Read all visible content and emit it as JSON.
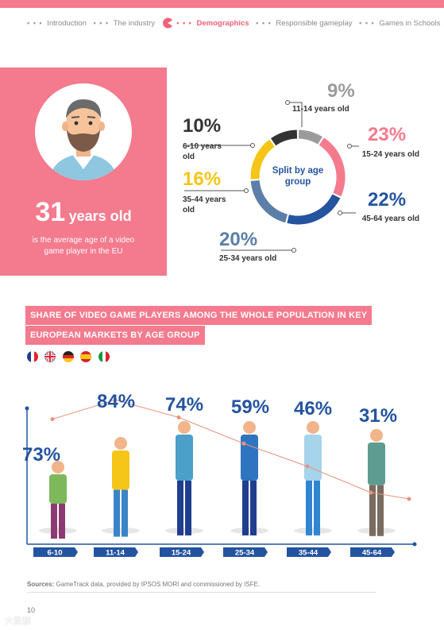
{
  "nav": {
    "items": [
      {
        "label": "Introduction",
        "active": false
      },
      {
        "label": "The industry",
        "active": false
      },
      {
        "label": "Demographics",
        "active": true
      },
      {
        "label": "Responsible gameplay",
        "active": false
      },
      {
        "label": "Games in Schools",
        "active": false
      }
    ]
  },
  "hero": {
    "age_number": "31",
    "age_unit": "years old",
    "description": "is the average age of a video game player in the EU"
  },
  "split": {
    "center_label": "Split by age group",
    "segments": [
      {
        "pct": "9%",
        "label": "11-14 years old",
        "value": 9,
        "color": "#9b9b9b"
      },
      {
        "pct": "23%",
        "label": "15-24 years old",
        "value": 23,
        "color": "#f47a8e"
      },
      {
        "pct": "22%",
        "label": "45-64 years old",
        "value": 22,
        "color": "#2454a0"
      },
      {
        "pct": "20%",
        "label": "25-34 years old",
        "value": 20,
        "color": "#5b7fa8"
      },
      {
        "pct": "16%",
        "label": "35-44 years old",
        "value": 16,
        "color": "#f5c518"
      },
      {
        "pct": "10%",
        "label": "6-10 years old",
        "value": 10,
        "color": "#333333"
      }
    ]
  },
  "share": {
    "title_line1": "SHARE OF VIDEO GAME PLAYERS AMONG THE WHOLE POPULATION IN KEY",
    "title_line2": "EUROPEAN MARKETS BY AGE GROUP",
    "flags": [
      "france-flag",
      "uk-flag",
      "germany-flag",
      "spain-flag",
      "italy-flag"
    ]
  },
  "chart_data": {
    "type": "line",
    "categories": [
      "6-10",
      "11-14",
      "15-24",
      "25-34",
      "35-44",
      "45-64"
    ],
    "values": [
      73,
      84,
      74,
      59,
      46,
      31
    ],
    "labels": [
      "73%",
      "84%",
      "74%",
      "59%",
      "46%",
      "31%"
    ],
    "title": "SHARE OF VIDEO GAME PLAYERS AMONG THE WHOLE POPULATION IN KEY EUROPEAN MARKETS BY AGE GROUP",
    "colors": {
      "line": "#e8937f",
      "axis": "#2454a0",
      "label": "#2454a0"
    }
  },
  "footer": {
    "sources_bold": "Sources:",
    "sources_text": "GameTrack data, provided by IPSOS MORI and commissioned by ISFE.",
    "page_number": "10",
    "watermark": "大数据"
  }
}
